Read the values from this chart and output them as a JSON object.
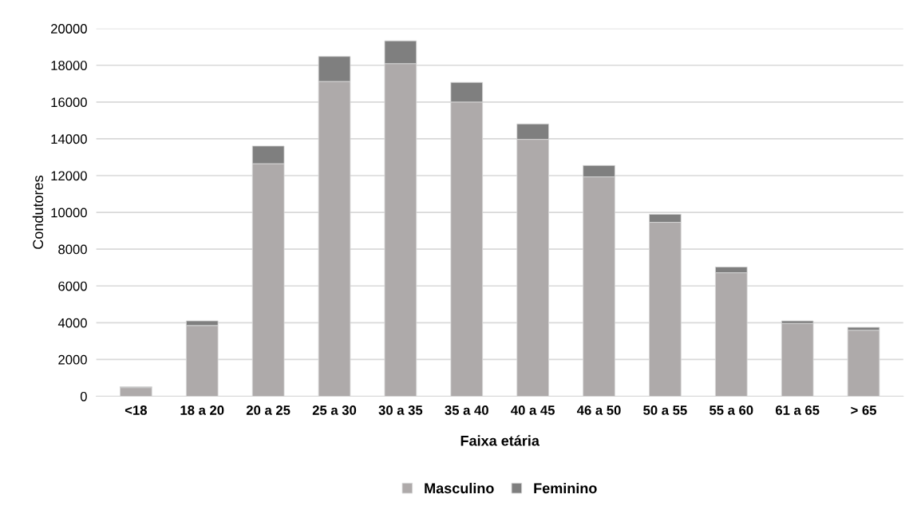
{
  "chart_data": {
    "type": "bar",
    "stacked": true,
    "xlabel": "Faixa etária",
    "ylabel": "Condutores",
    "categories": [
      "<18",
      "18 a 20",
      "20 a 25",
      "25 a 30",
      "30 a 35",
      "35 a 40",
      "40 a 45",
      "46 a 50",
      "50 a 55",
      "55 a 60",
      "61 a 65",
      "> 65"
    ],
    "series": [
      {
        "name": "Masculino",
        "color": "#aeaaaa",
        "values": [
          470,
          3850,
          12650,
          17120,
          18090,
          16000,
          13970,
          11930,
          9460,
          6720,
          3960,
          3590
        ]
      },
      {
        "name": "Feminino",
        "color": "#7f7f7f",
        "values": [
          50,
          250,
          960,
          1360,
          1240,
          1070,
          840,
          620,
          440,
          310,
          140,
          160
        ]
      }
    ],
    "ylim": [
      0,
      20000
    ],
    "yticks": [
      0,
      2000,
      4000,
      6000,
      8000,
      10000,
      12000,
      14000,
      16000,
      18000,
      20000
    ],
    "grid": "y",
    "legend": "bottom"
  }
}
